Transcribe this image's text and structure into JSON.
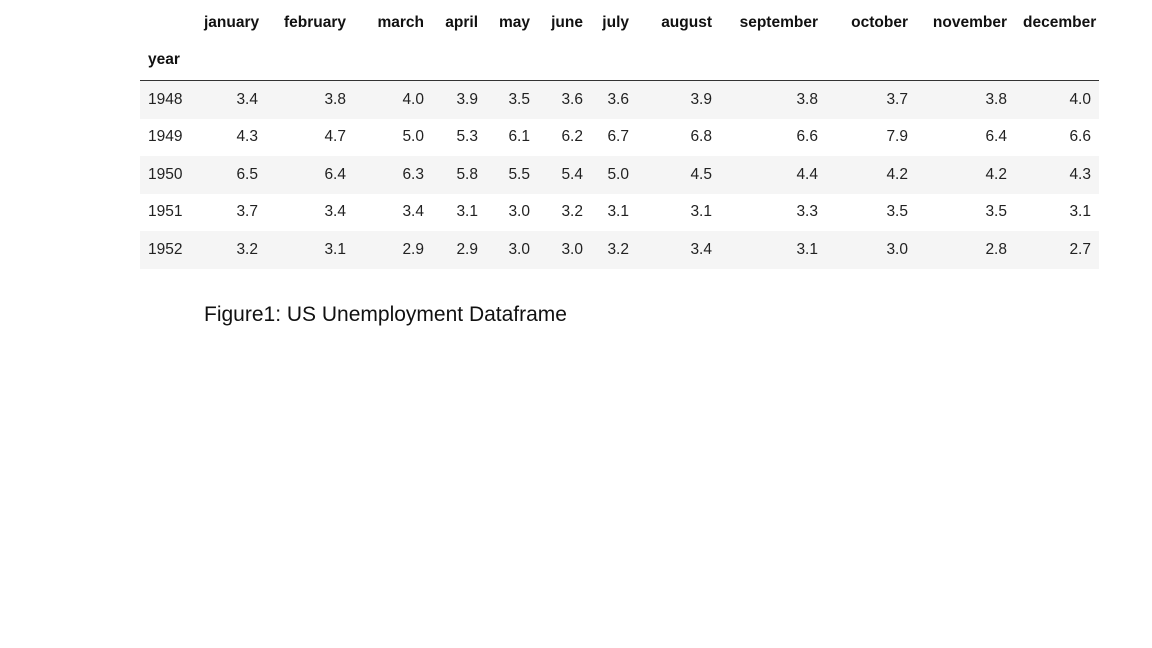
{
  "table": {
    "index_name": "year",
    "columns": [
      "january",
      "february",
      "march",
      "april",
      "may",
      "june",
      "july",
      "august",
      "september",
      "october",
      "november",
      "december"
    ],
    "rows": [
      {
        "year": "1948",
        "values": [
          "3.4",
          "3.8",
          "4.0",
          "3.9",
          "3.5",
          "3.6",
          "3.6",
          "3.9",
          "3.8",
          "3.7",
          "3.8",
          "4.0"
        ]
      },
      {
        "year": "1949",
        "values": [
          "4.3",
          "4.7",
          "5.0",
          "5.3",
          "6.1",
          "6.2",
          "6.7",
          "6.8",
          "6.6",
          "7.9",
          "6.4",
          "6.6"
        ]
      },
      {
        "year": "1950",
        "values": [
          "6.5",
          "6.4",
          "6.3",
          "5.8",
          "5.5",
          "5.4",
          "5.0",
          "4.5",
          "4.4",
          "4.2",
          "4.2",
          "4.3"
        ]
      },
      {
        "year": "1951",
        "values": [
          "3.7",
          "3.4",
          "3.4",
          "3.1",
          "3.0",
          "3.2",
          "3.1",
          "3.1",
          "3.3",
          "3.5",
          "3.5",
          "3.1"
        ]
      },
      {
        "year": "1952",
        "values": [
          "3.2",
          "3.1",
          "2.9",
          "2.9",
          "3.0",
          "3.0",
          "3.2",
          "3.4",
          "3.1",
          "3.0",
          "2.8",
          "2.7"
        ]
      }
    ]
  },
  "caption": "Figure1: US Unemployment Dataframe"
}
